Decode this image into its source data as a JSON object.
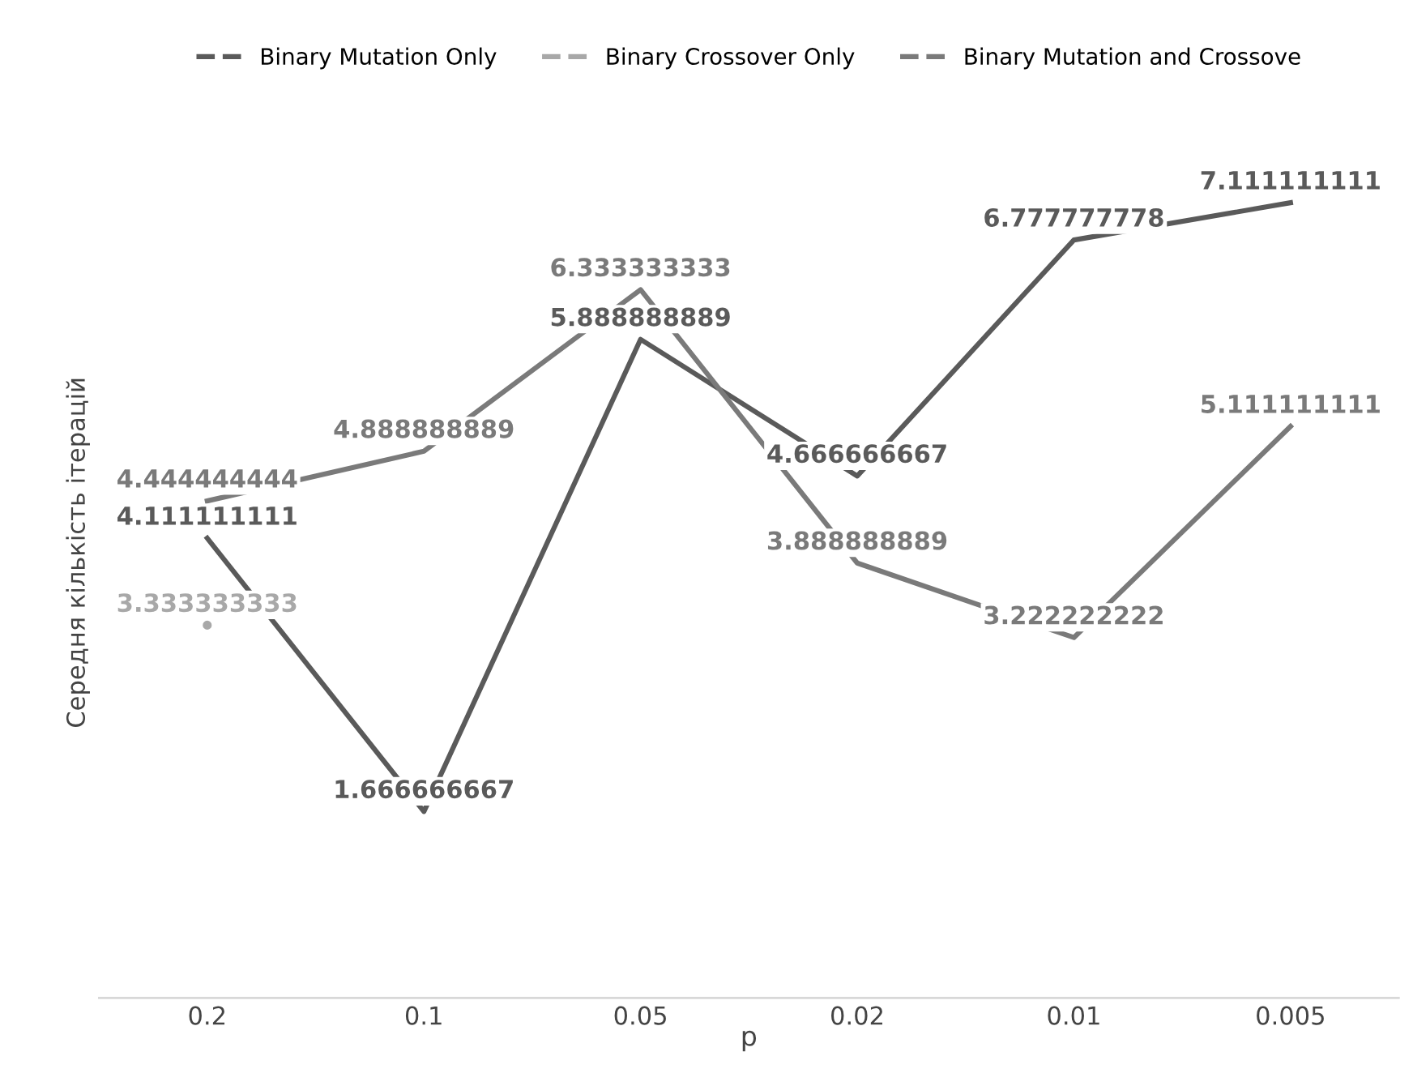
{
  "chart_data": {
    "type": "line",
    "xlabel": "p",
    "ylabel": "Середня кількість ітерацій",
    "categories": [
      "0.2",
      "0.1",
      "0.05",
      "0.02",
      "0.01",
      "0.005"
    ],
    "series": [
      {
        "name": "Binary Mutation Only",
        "color": "#5a5a5a",
        "values": [
          4.111111111,
          1.666666667,
          5.888888889,
          4.666666667,
          6.777777778,
          7.111111111
        ]
      },
      {
        "name": "Binary Crossover Only",
        "color": "#a8a8a8",
        "marker": "circle",
        "values": [
          3.333333333,
          null,
          null,
          null,
          null,
          null
        ]
      },
      {
        "name": "Binary Mutation and Crossove",
        "color": "#7a7a7a",
        "values": [
          4.444444444,
          4.888888889,
          6.333333333,
          3.888888889,
          3.222222222,
          5.111111111
        ]
      }
    ],
    "data_labels": true,
    "legend": "top",
    "grid": false,
    "tick_labels": "x",
    "line_style": "solid"
  }
}
